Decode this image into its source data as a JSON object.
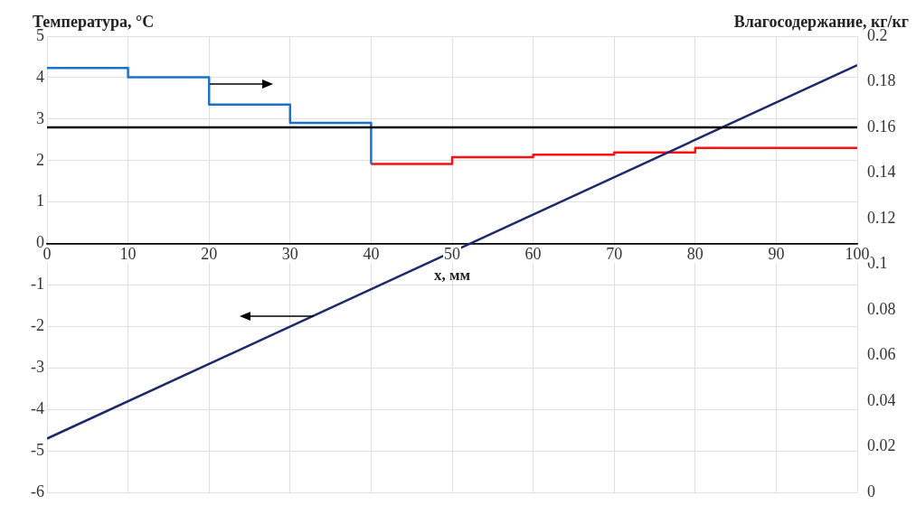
{
  "chart_data": {
    "type": "step",
    "ylabel": "Температура, °C",
    "y2label": "Влагосодержание, кг/кг",
    "xlabel": "x, мм",
    "xlim": [
      0,
      100
    ],
    "xticks": [
      0,
      10,
      20,
      30,
      40,
      50,
      60,
      70,
      80,
      90,
      100
    ],
    "ylim": [
      -6,
      5
    ],
    "yticks": [
      -6,
      -5,
      -4,
      -3,
      -2,
      -1,
      0,
      1,
      2,
      3,
      4,
      5
    ],
    "y2lim": [
      0,
      0.2
    ],
    "y2ticks": [
      0,
      0.02,
      0.04,
      0.06,
      0.08,
      0.1,
      0.12,
      0.14,
      0.16,
      0.18,
      0.2
    ],
    "grid": true,
    "legend": false,
    "marker": "none",
    "line_style": "solid",
    "series": [
      {
        "type": "line",
        "color": "#1f2a6b",
        "x": [
          0,
          100
        ],
        "values": [
          -4.7,
          4.3
        ]
      },
      {
        "axis": "y2",
        "color": "#1a73c8",
        "x": [
          0,
          10,
          20,
          30,
          40,
          40
        ],
        "values": [
          0.186,
          0.182,
          0.17,
          0.162,
          0.162,
          0.144
        ]
      },
      {
        "axis": "y2",
        "color": "#ff1010",
        "x": [
          40,
          50,
          60,
          70,
          80,
          100
        ],
        "values": [
          0.144,
          0.147,
          0.148,
          0.149,
          0.151,
          0.151
        ]
      }
    ],
    "ref_lines": [
      {
        "axis": "y2",
        "value": 0.16,
        "color": "#000000"
      }
    ]
  }
}
